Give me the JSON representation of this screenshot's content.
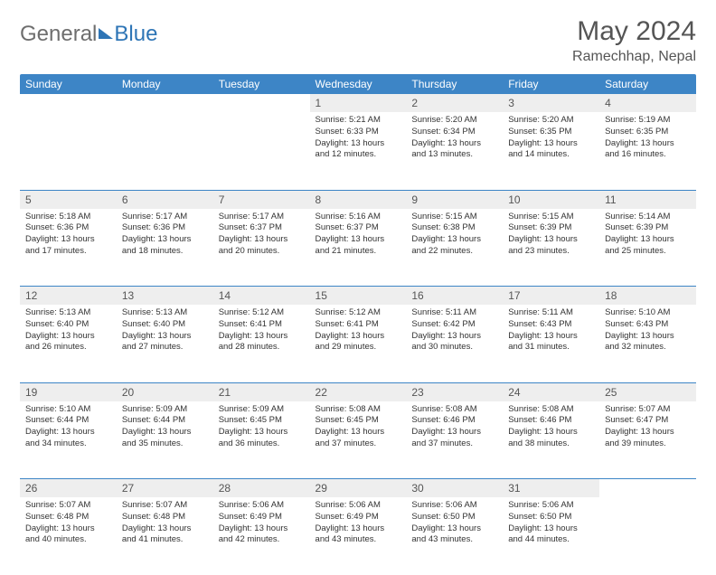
{
  "logo": {
    "part1": "General",
    "part2": "Blue"
  },
  "title": "May 2024",
  "location": "Ramechhap, Nepal",
  "colors": {
    "header_bg": "#3d85c6",
    "header_text": "#ffffff",
    "daynum_bg": "#eeeeee",
    "border": "#3d85c6",
    "logo_accent": "#2e75b6",
    "text": "#333333",
    "muted": "#555555"
  },
  "weekdays": [
    "Sunday",
    "Monday",
    "Tuesday",
    "Wednesday",
    "Thursday",
    "Friday",
    "Saturday"
  ],
  "weeks": [
    {
      "nums": [
        "",
        "",
        "",
        "1",
        "2",
        "3",
        "4"
      ],
      "details": [
        "",
        "",
        "",
        "Sunrise: 5:21 AM\nSunset: 6:33 PM\nDaylight: 13 hours and 12 minutes.",
        "Sunrise: 5:20 AM\nSunset: 6:34 PM\nDaylight: 13 hours and 13 minutes.",
        "Sunrise: 5:20 AM\nSunset: 6:35 PM\nDaylight: 13 hours and 14 minutes.",
        "Sunrise: 5:19 AM\nSunset: 6:35 PM\nDaylight: 13 hours and 16 minutes."
      ]
    },
    {
      "nums": [
        "5",
        "6",
        "7",
        "8",
        "9",
        "10",
        "11"
      ],
      "details": [
        "Sunrise: 5:18 AM\nSunset: 6:36 PM\nDaylight: 13 hours and 17 minutes.",
        "Sunrise: 5:17 AM\nSunset: 6:36 PM\nDaylight: 13 hours and 18 minutes.",
        "Sunrise: 5:17 AM\nSunset: 6:37 PM\nDaylight: 13 hours and 20 minutes.",
        "Sunrise: 5:16 AM\nSunset: 6:37 PM\nDaylight: 13 hours and 21 minutes.",
        "Sunrise: 5:15 AM\nSunset: 6:38 PM\nDaylight: 13 hours and 22 minutes.",
        "Sunrise: 5:15 AM\nSunset: 6:39 PM\nDaylight: 13 hours and 23 minutes.",
        "Sunrise: 5:14 AM\nSunset: 6:39 PM\nDaylight: 13 hours and 25 minutes."
      ]
    },
    {
      "nums": [
        "12",
        "13",
        "14",
        "15",
        "16",
        "17",
        "18"
      ],
      "details": [
        "Sunrise: 5:13 AM\nSunset: 6:40 PM\nDaylight: 13 hours and 26 minutes.",
        "Sunrise: 5:13 AM\nSunset: 6:40 PM\nDaylight: 13 hours and 27 minutes.",
        "Sunrise: 5:12 AM\nSunset: 6:41 PM\nDaylight: 13 hours and 28 minutes.",
        "Sunrise: 5:12 AM\nSunset: 6:41 PM\nDaylight: 13 hours and 29 minutes.",
        "Sunrise: 5:11 AM\nSunset: 6:42 PM\nDaylight: 13 hours and 30 minutes.",
        "Sunrise: 5:11 AM\nSunset: 6:43 PM\nDaylight: 13 hours and 31 minutes.",
        "Sunrise: 5:10 AM\nSunset: 6:43 PM\nDaylight: 13 hours and 32 minutes."
      ]
    },
    {
      "nums": [
        "19",
        "20",
        "21",
        "22",
        "23",
        "24",
        "25"
      ],
      "details": [
        "Sunrise: 5:10 AM\nSunset: 6:44 PM\nDaylight: 13 hours and 34 minutes.",
        "Sunrise: 5:09 AM\nSunset: 6:44 PM\nDaylight: 13 hours and 35 minutes.",
        "Sunrise: 5:09 AM\nSunset: 6:45 PM\nDaylight: 13 hours and 36 minutes.",
        "Sunrise: 5:08 AM\nSunset: 6:45 PM\nDaylight: 13 hours and 37 minutes.",
        "Sunrise: 5:08 AM\nSunset: 6:46 PM\nDaylight: 13 hours and 37 minutes.",
        "Sunrise: 5:08 AM\nSunset: 6:46 PM\nDaylight: 13 hours and 38 minutes.",
        "Sunrise: 5:07 AM\nSunset: 6:47 PM\nDaylight: 13 hours and 39 minutes."
      ]
    },
    {
      "nums": [
        "26",
        "27",
        "28",
        "29",
        "30",
        "31",
        ""
      ],
      "details": [
        "Sunrise: 5:07 AM\nSunset: 6:48 PM\nDaylight: 13 hours and 40 minutes.",
        "Sunrise: 5:07 AM\nSunset: 6:48 PM\nDaylight: 13 hours and 41 minutes.",
        "Sunrise: 5:06 AM\nSunset: 6:49 PM\nDaylight: 13 hours and 42 minutes.",
        "Sunrise: 5:06 AM\nSunset: 6:49 PM\nDaylight: 13 hours and 43 minutes.",
        "Sunrise: 5:06 AM\nSunset: 6:50 PM\nDaylight: 13 hours and 43 minutes.",
        "Sunrise: 5:06 AM\nSunset: 6:50 PM\nDaylight: 13 hours and 44 minutes.",
        ""
      ]
    }
  ]
}
